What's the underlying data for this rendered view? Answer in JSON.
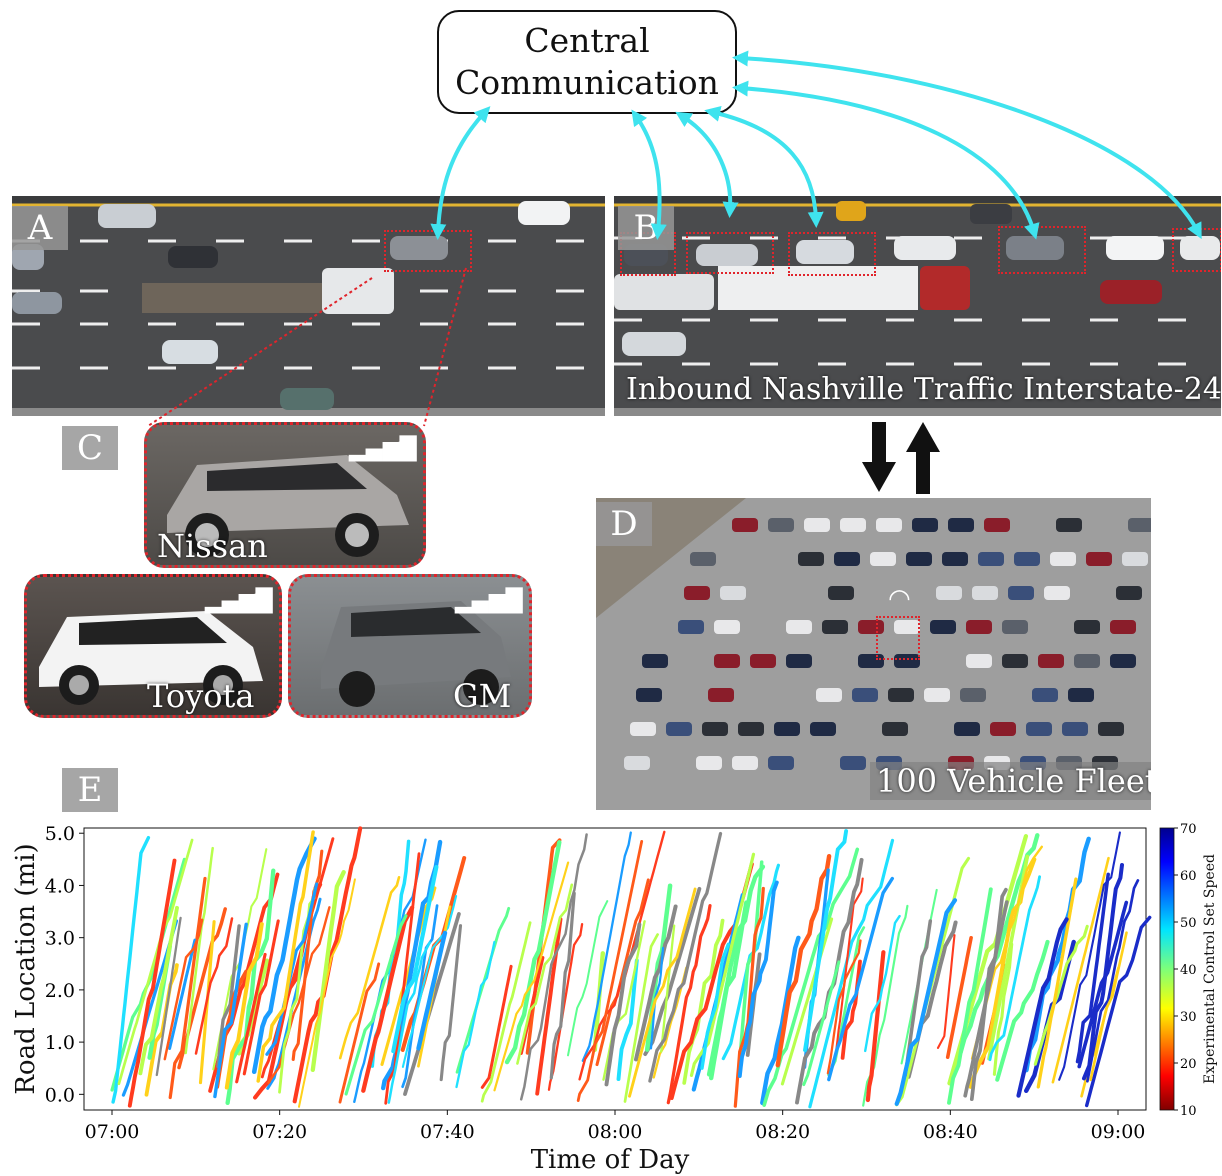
{
  "central": {
    "line1": "Central",
    "line2": "Communication"
  },
  "panels": {
    "a": "A",
    "b": "B",
    "c": "C",
    "d": "D",
    "e": "E"
  },
  "captions": {
    "highway": "Inbound Nashville Traffic Interstate-24",
    "fleet": "100 Vehicle Fleet",
    "nissan": "Nissan",
    "toyota": "Toyota",
    "gm": "GM"
  },
  "icons": [
    "cellular-signal-icon",
    "wifi-icon",
    "down-arrow-icon",
    "up-arrow-icon"
  ],
  "colors": {
    "link": "#3fe3ee",
    "highlight": "#e0242b",
    "road": "#4a4b4d"
  },
  "chart_data": {
    "type": "scatter",
    "xlabel": "Time of Day",
    "ylabel": "Road Location (mi)",
    "colorbar_label": "Experimental Control Set Speed",
    "x_ticks": [
      "07:00",
      "07:20",
      "07:40",
      "08:00",
      "08:20",
      "08:40",
      "09:00"
    ],
    "y_ticks": [
      "0.0",
      "1.0",
      "2.0",
      "3.0",
      "4.0",
      "5.0"
    ],
    "colorbar_ticks": [
      "10",
      "20",
      "30",
      "40",
      "50",
      "60",
      "70"
    ],
    "xlim": [
      "07:00",
      "09:00"
    ],
    "ylim": [
      -0.3,
      5.1
    ],
    "clim": [
      10,
      70
    ],
    "colormap": "jet",
    "grid": false
  }
}
